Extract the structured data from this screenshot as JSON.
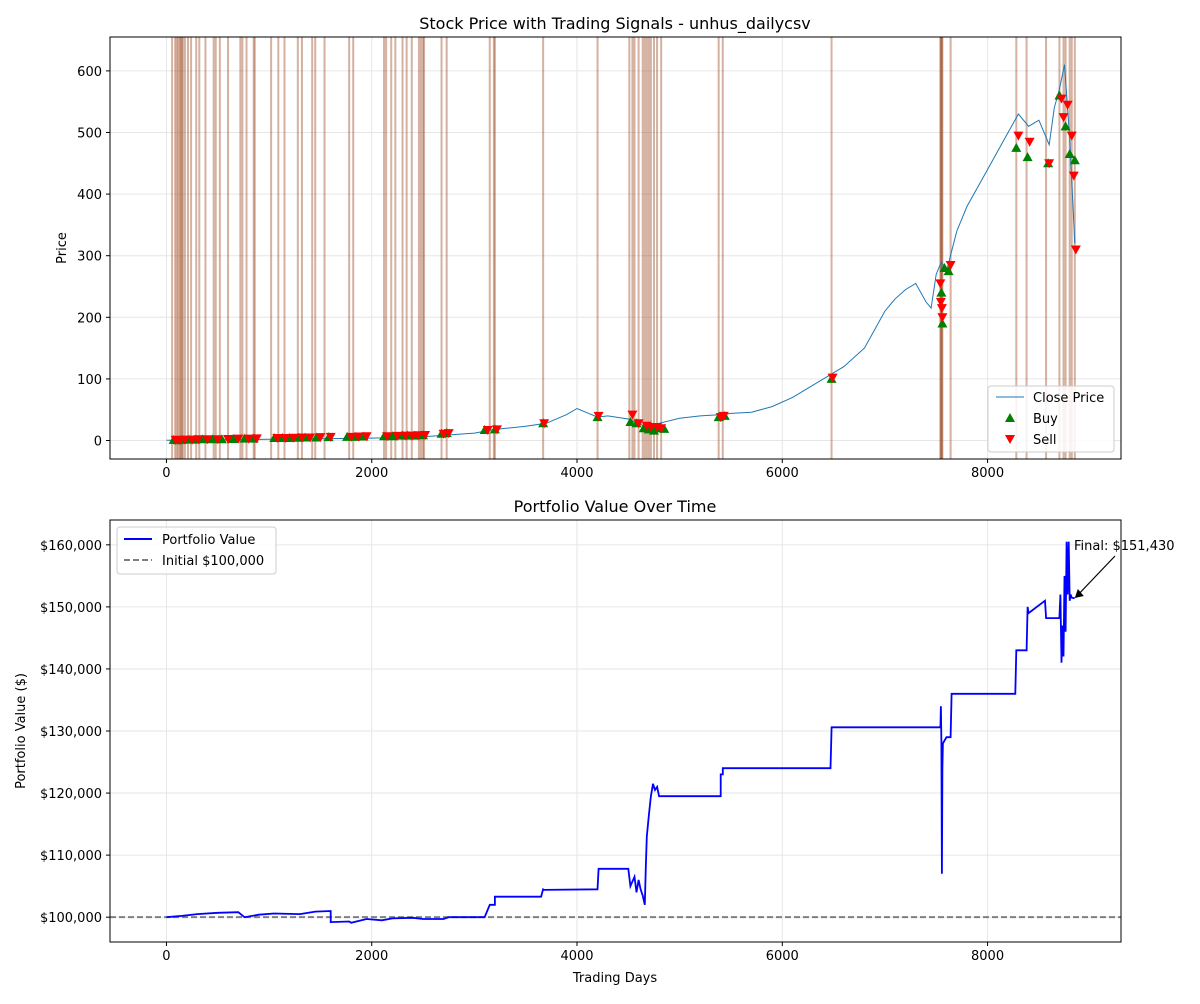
{
  "colors": {
    "close_line": "#1f77b4",
    "buy": "#008000",
    "sell": "#ff0000",
    "signal_band": "#a0522d",
    "portfolio": "#0000ff",
    "initial_line": "#808080",
    "grid": "#e6e6e6"
  },
  "chart_data": [
    {
      "type": "line",
      "title": "Stock Price with Trading Signals - unhus_dailycsv",
      "xlabel": "",
      "ylabel": "Price",
      "xlim": [
        -550,
        9300
      ],
      "ylim": [
        -30,
        655
      ],
      "xticks": [
        0,
        2000,
        4000,
        6000,
        8000
      ],
      "xtick_labels": [
        "0",
        "2000",
        "4000",
        "6000",
        "8000"
      ],
      "yticks": [
        0,
        100,
        200,
        300,
        400,
        500,
        600
      ],
      "ytick_labels": [
        "0",
        "100",
        "200",
        "300",
        "400",
        "500",
        "600"
      ],
      "grid": true,
      "legend_position": "lower-right",
      "legend": [
        "Close Price",
        "Buy",
        "Sell"
      ],
      "series": [
        {
          "name": "Close Price",
          "x": [
            0,
            500,
            1000,
            1500,
            2000,
            2500,
            3000,
            3200,
            3500,
            3700,
            3900,
            4000,
            4100,
            4200,
            4300,
            4500,
            4700,
            4800,
            5000,
            5200,
            5400,
            5500,
            5700,
            5900,
            6100,
            6300,
            6450,
            6600,
            6800,
            6900,
            7000,
            7100,
            7200,
            7300,
            7400,
            7450,
            7500,
            7550,
            7600,
            7700,
            7800,
            7900,
            8000,
            8100,
            8200,
            8300,
            8400,
            8500,
            8600,
            8650,
            8700,
            8750,
            8800,
            8850
          ],
          "y": [
            0.5,
            1,
            2,
            3,
            4,
            6,
            12,
            18,
            23,
            28,
            42,
            52,
            45,
            38,
            40,
            35,
            20,
            28,
            36,
            40,
            42,
            44,
            46,
            55,
            70,
            90,
            105,
            120,
            150,
            180,
            210,
            230,
            245,
            255,
            225,
            215,
            270,
            290,
            275,
            340,
            380,
            410,
            440,
            470,
            500,
            530,
            510,
            520,
            480,
            540,
            570,
            610,
            490,
            320
          ]
        }
      ],
      "buy_signals": {
        "x": [
          70,
          110,
          150,
          220,
          280,
          350,
          450,
          540,
          650,
          760,
          850,
          1050,
          1130,
          1200,
          1290,
          1350,
          1460,
          1580,
          1760,
          1840,
          1920,
          2120,
          2200,
          2300,
          2350,
          2420,
          2500,
          2680,
          2730,
          3100,
          3200,
          3670,
          4200,
          4520,
          4580,
          4650,
          4700,
          4750,
          4800,
          4850,
          5380,
          5440,
          6480,
          7550,
          7560,
          7580,
          7620,
          8280,
          8390,
          8590,
          8700,
          8760,
          8800,
          8850
        ],
        "y": [
          1,
          0.5,
          1,
          1.5,
          1.5,
          2,
          2,
          2,
          2.5,
          3,
          3,
          4,
          4,
          4,
          4.5,
          5,
          5,
          5.5,
          6,
          6,
          6.5,
          7,
          7,
          8,
          8,
          8,
          8.5,
          11,
          12,
          17,
          18,
          28,
          38,
          30,
          28,
          20,
          18,
          16,
          20,
          19,
          38,
          40,
          100,
          240,
          190,
          280,
          275,
          475,
          460,
          450,
          560,
          510,
          465,
          455
        ]
      },
      "sell_signals": {
        "x": [
          90,
          130,
          180,
          250,
          310,
          400,
          500,
          600,
          700,
          800,
          880,
          1080,
          1160,
          1240,
          1320,
          1400,
          1500,
          1600,
          1800,
          1870,
          1950,
          2150,
          2250,
          2330,
          2400,
          2450,
          2520,
          2700,
          2750,
          3130,
          3220,
          3680,
          4210,
          4540,
          4600,
          4680,
          4720,
          4780,
          4820,
          5400,
          5430,
          6490,
          7540,
          7545,
          7555,
          7560,
          7640,
          8300,
          8410,
          8600,
          8720,
          8740,
          8780,
          8820,
          8840,
          8860
        ],
        "y": [
          1,
          1,
          1.5,
          1.5,
          2,
          2,
          2,
          2.5,
          3,
          3,
          3.5,
          4,
          4,
          4.5,
          5,
          5,
          5.5,
          6,
          6,
          6.5,
          7,
          7,
          7.5,
          8,
          8,
          8.5,
          9,
          11,
          12,
          17,
          18,
          28,
          40,
          42,
          28,
          24,
          22,
          22,
          20,
          38,
          40,
          102,
          255,
          225,
          215,
          200,
          285,
          495,
          485,
          450,
          555,
          525,
          545,
          495,
          430,
          310
        ]
      },
      "signal_bands_x": [
        55,
        85,
        100,
        115,
        130,
        140,
        150,
        160,
        180,
        210,
        240,
        290,
        320,
        380,
        460,
        480,
        520,
        600,
        720,
        740,
        780,
        850,
        860,
        1020,
        1090,
        1150,
        1280,
        1320,
        1420,
        1450,
        1540,
        1780,
        1820,
        2120,
        2140,
        2190,
        2230,
        2300,
        2340,
        2390,
        2460,
        2480,
        2500,
        2510,
        2680,
        2730,
        3150,
        3190,
        3200,
        3670,
        4200,
        4510,
        4540,
        4560,
        4600,
        4640,
        4660,
        4680,
        4700,
        4720,
        4750,
        4780,
        4820,
        5380,
        5420,
        6480,
        7540,
        7545,
        7550,
        7555,
        7560,
        7640,
        8280,
        8380,
        8570,
        8700,
        8740,
        8760,
        8800,
        8820,
        8850
      ]
    },
    {
      "type": "line",
      "title": "Portfolio Value Over Time",
      "xlabel": "Trading Days",
      "ylabel": "Portfolio Value ($)",
      "xlim": [
        -550,
        9300
      ],
      "ylim": [
        96000,
        164000
      ],
      "xticks": [
        0,
        2000,
        4000,
        6000,
        8000
      ],
      "xtick_labels": [
        "0",
        "2000",
        "4000",
        "6000",
        "8000"
      ],
      "yticks": [
        100000,
        110000,
        120000,
        130000,
        140000,
        150000,
        160000
      ],
      "ytick_labels": [
        "$100,000",
        "$110,000",
        "$120,000",
        "$130,000",
        "$140,000",
        "$150,000",
        "$160,000"
      ],
      "grid": true,
      "legend_position": "upper-left",
      "legend": [
        "Portfolio Value",
        "Initial $100,000"
      ],
      "series": [
        {
          "name": "Portfolio Value",
          "x": [
            0,
            150,
            300,
            500,
            700,
            760,
            900,
            1050,
            1300,
            1450,
            1600,
            1600,
            1780,
            1800,
            1950,
            2100,
            2200,
            2400,
            2500,
            2700,
            2750,
            3100,
            3150,
            3200,
            3200,
            3650,
            3670,
            3680,
            4200,
            4210,
            4500,
            4520,
            4560,
            4580,
            4600,
            4620,
            4640,
            4660,
            4670,
            4680,
            4700,
            4720,
            4740,
            4760,
            4780,
            4800,
            4820,
            5400,
            5400,
            5420,
            5420,
            6470,
            6480,
            6490,
            7540,
            7545,
            7550,
            7555,
            7560,
            7565,
            7600,
            7640,
            7650,
            8270,
            8280,
            8290,
            8380,
            8390,
            8400,
            8560,
            8570,
            8590,
            8700,
            8710,
            8720,
            8730,
            8740,
            8750,
            8760,
            8770,
            8780,
            8790,
            8800,
            8810,
            8820,
            8830,
            8850
          ],
          "y": [
            100000,
            100200,
            100500,
            100700,
            100800,
            100000,
            100400,
            100600,
            100500,
            100900,
            101000,
            99200,
            99300,
            99100,
            99700,
            99500,
            99800,
            99900,
            99700,
            99700,
            100000,
            100000,
            102000,
            102000,
            103300,
            103300,
            104500,
            104400,
            104500,
            107800,
            107800,
            105000,
            106500,
            104000,
            106000,
            104500,
            103500,
            102000,
            108000,
            113000,
            116500,
            119500,
            121500,
            120500,
            121000,
            119500,
            119500,
            119500,
            123000,
            123000,
            124000,
            124000,
            130600,
            130600,
            130600,
            134000,
            128000,
            107000,
            124000,
            128000,
            129000,
            129000,
            136000,
            136000,
            143000,
            143000,
            143000,
            150000,
            149000,
            151000,
            148200,
            148200,
            148200,
            152000,
            141000,
            147000,
            142000,
            155000,
            146000,
            160500,
            152000,
            160500,
            151000,
            152000,
            151500,
            151430,
            151430
          ]
        }
      ],
      "initial_value": 100000,
      "annotation": {
        "text": "Final: $151,430",
        "x": 8850,
        "y": 151430
      }
    }
  ]
}
